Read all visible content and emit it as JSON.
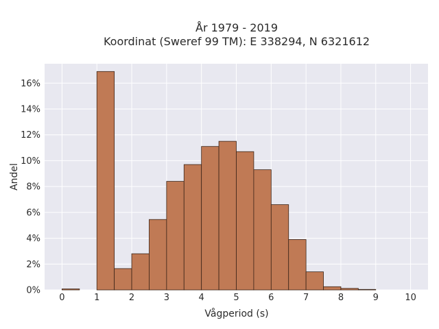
{
  "chart_data": {
    "type": "bar",
    "title_line1": "År 1979 - 2019",
    "title_line2": "Koordinat (Sweref 99 TM): E 338294, N 6321612",
    "xlabel": "Vågperiod (s)",
    "ylabel": "Andel",
    "xlim": [
      -0.5,
      10.5
    ],
    "ylim": [
      0,
      17.5
    ],
    "x_ticks": [
      0,
      1,
      2,
      3,
      4,
      5,
      6,
      7,
      8,
      9,
      10
    ],
    "y_ticks": [
      0,
      2,
      4,
      6,
      8,
      10,
      12,
      14,
      16
    ],
    "y_tick_suffix": "%",
    "bin_width": 0.5,
    "bins": [
      {
        "x0": 0.0,
        "value": 0.08
      },
      {
        "x0": 0.5,
        "value": 0.0
      },
      {
        "x0": 1.0,
        "value": 16.9
      },
      {
        "x0": 1.5,
        "value": 1.65
      },
      {
        "x0": 2.0,
        "value": 2.8
      },
      {
        "x0": 2.5,
        "value": 5.45
      },
      {
        "x0": 3.0,
        "value": 8.4
      },
      {
        "x0": 3.5,
        "value": 9.7
      },
      {
        "x0": 4.0,
        "value": 11.1
      },
      {
        "x0": 4.5,
        "value": 11.5
      },
      {
        "x0": 5.0,
        "value": 10.7
      },
      {
        "x0": 5.5,
        "value": 9.3
      },
      {
        "x0": 6.0,
        "value": 6.6
      },
      {
        "x0": 6.5,
        "value": 3.9
      },
      {
        "x0": 7.0,
        "value": 1.4
      },
      {
        "x0": 7.5,
        "value": 0.25
      },
      {
        "x0": 8.0,
        "value": 0.12
      },
      {
        "x0": 8.5,
        "value": 0.04
      }
    ],
    "grid": true,
    "colors": {
      "bar_fill": "#c07a55",
      "bar_stroke": "#3a2418",
      "plot_background": "#e8e8f0",
      "grid": "#ffffff"
    }
  }
}
